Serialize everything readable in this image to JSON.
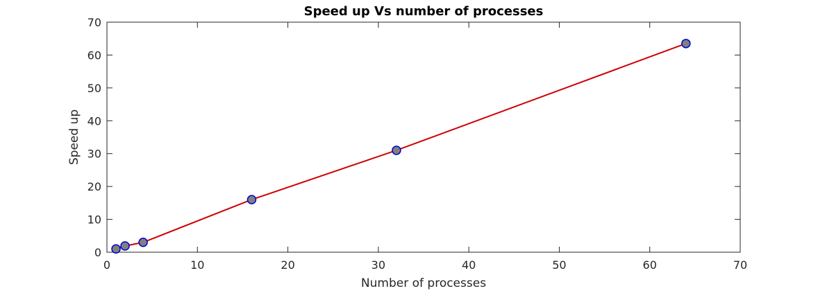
{
  "chart_data": {
    "type": "line",
    "title": "Speed up Vs number of processes",
    "xlabel": "Number of processes",
    "ylabel": "Speed up",
    "xlim": [
      0,
      70
    ],
    "ylim": [
      0,
      70
    ],
    "xticks": [
      "0",
      "10",
      "20",
      "30",
      "40",
      "50",
      "60",
      "70"
    ],
    "yticks": [
      "0",
      "10",
      "20",
      "30",
      "40",
      "50",
      "60",
      "70"
    ],
    "grid": false,
    "series": [
      {
        "x": [
          1,
          2,
          4,
          16,
          32,
          64
        ],
        "y": [
          1,
          1.9,
          3,
          16,
          31,
          63.5
        ],
        "line_color": "#d00000",
        "marker_face_color": "#808080",
        "marker_edge_color": "#0000cc"
      }
    ]
  }
}
